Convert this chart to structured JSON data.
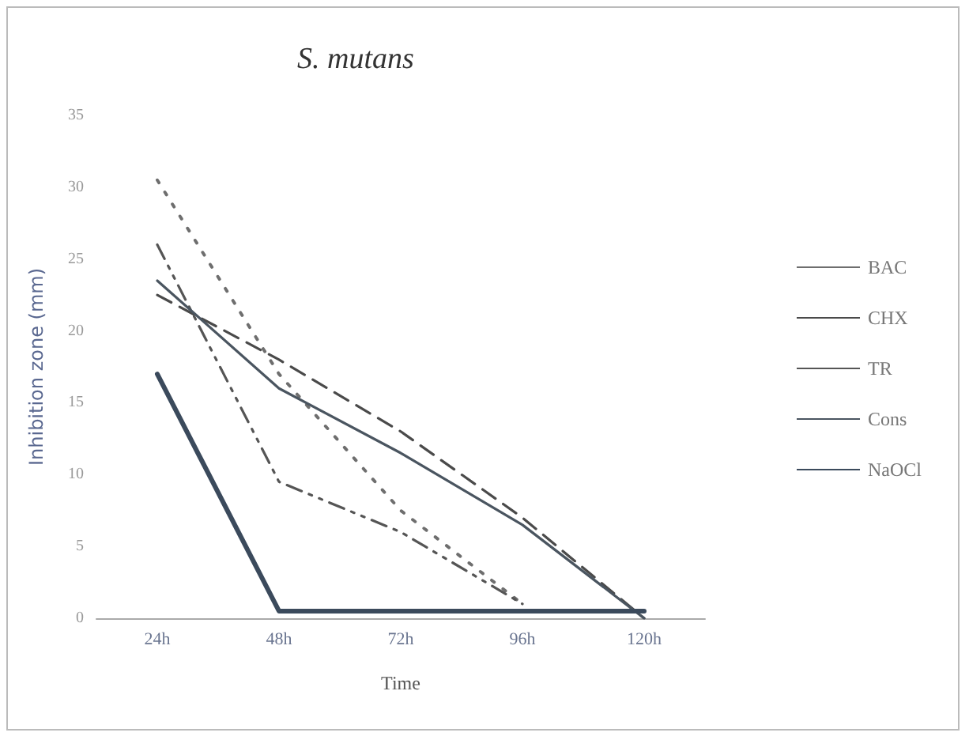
{
  "chart_data": {
    "type": "line",
    "title": "S. mutans",
    "xlabel": "Time",
    "ylabel": "Inhibition zone (mm)",
    "categories": [
      "24h",
      "48h",
      "72h",
      "96h",
      "120h"
    ],
    "series": [
      {
        "name": "BAC",
        "color": "#6e6e6e",
        "line_style": "dotted",
        "values": [
          30.5,
          17,
          7.5,
          1,
          null
        ]
      },
      {
        "name": "CHX",
        "color": "#4a4a4a",
        "line_style": "dashed",
        "values": [
          22.5,
          18,
          13,
          7,
          0
        ]
      },
      {
        "name": "TR",
        "color": "#555555",
        "line_style": "dashdot",
        "values": [
          26,
          9.5,
          6,
          1,
          null
        ]
      },
      {
        "name": "Cons",
        "color": "#4a5560",
        "line_style": "solid",
        "values": [
          23.5,
          16,
          11.5,
          6.5,
          0
        ]
      },
      {
        "name": "NaOCl",
        "color": "#3b4a5c",
        "line_style": "solid",
        "values": [
          17,
          0.5,
          0.5,
          0.5,
          0.5
        ]
      }
    ],
    "ylim": [
      0,
      35
    ],
    "yticks": [
      0,
      5,
      10,
      15,
      20,
      25,
      30,
      35
    ],
    "grid": false,
    "legend": "right",
    "marker": "none"
  }
}
